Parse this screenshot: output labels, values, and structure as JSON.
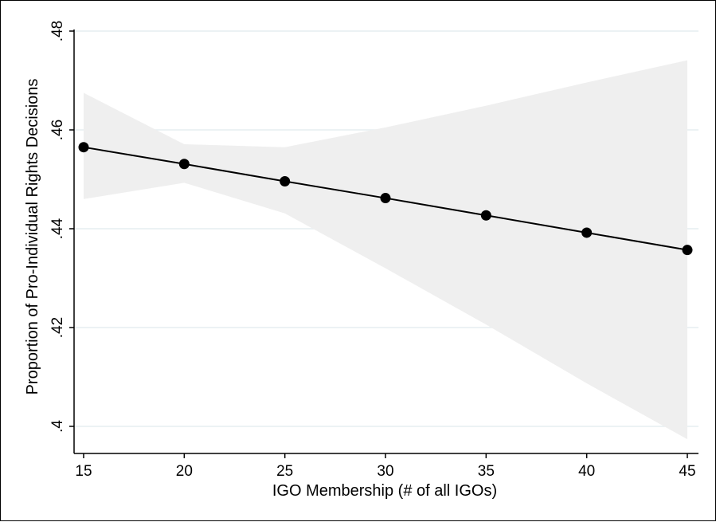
{
  "chart_data": {
    "type": "line",
    "title": "",
    "xlabel": "IGO Membership (# of all IGOs)",
    "ylabel": "Proportion of Pro-Individual Rights Decisions",
    "xlim": [
      15,
      45
    ],
    "ylim": [
      0.4,
      0.48
    ],
    "x_ticks": [
      15,
      20,
      25,
      30,
      35,
      40,
      45
    ],
    "x_tick_labels": [
      "15",
      "20",
      "25",
      "30",
      "35",
      "40",
      "45"
    ],
    "y_ticks": [
      0.4,
      0.42,
      0.44,
      0.46,
      0.48
    ],
    "y_tick_labels": [
      ".4",
      ".42",
      ".44",
      ".46",
      ".48"
    ],
    "grid": "horizontal",
    "legend": "none",
    "series": [
      {
        "x": [
          15,
          20,
          25,
          30,
          35,
          40,
          45
        ],
        "y": [
          0.4565,
          0.4531,
          0.4496,
          0.4462,
          0.4427,
          0.4392,
          0.4357
        ],
        "ci_lower": [
          0.446,
          0.4493,
          0.4431,
          0.432,
          0.4206,
          0.4087,
          0.3974
        ],
        "ci_upper": [
          0.4675,
          0.4571,
          0.4565,
          0.4605,
          0.4649,
          0.4696,
          0.4741
        ]
      }
    ],
    "colors": {
      "line": "#000000",
      "marker": "#000000",
      "ci_band": "#efefef",
      "grid": "#e6eef0"
    }
  }
}
